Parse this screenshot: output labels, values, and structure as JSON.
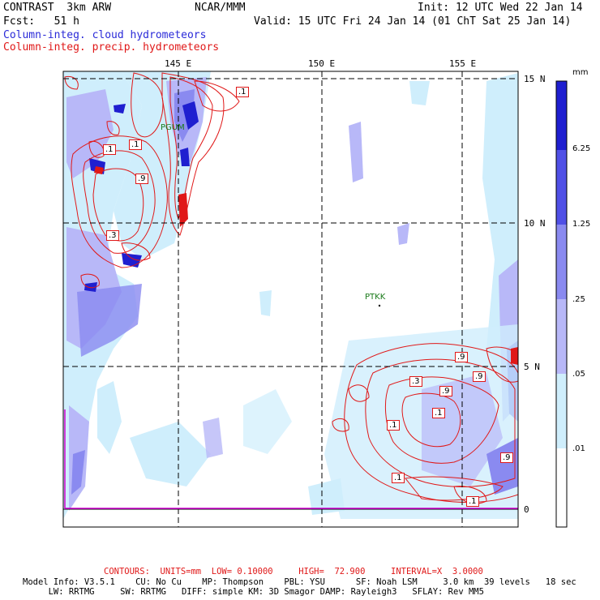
{
  "header": {
    "model": "CONTRAST  3km ARW",
    "org": "NCAR/MMM",
    "init": "Init: 12 UTC Wed 22 Jan 14",
    "fcst": "Fcst:   51 h",
    "valid": "Valid: 15 UTC Fri 24 Jan 14 (01 ChT Sat 25 Jan 14)",
    "field_cloud": "Column-integ. cloud hydrometeors",
    "field_precip": "Column-integ. precip. hydrometeors"
  },
  "axes": {
    "lon_labels": [
      "145 E",
      "150 E",
      "155 E"
    ],
    "lat_labels": [
      "15 N",
      "10 N",
      "5 N",
      "0"
    ]
  },
  "stations": [
    "PGUM",
    "PTKK"
  ],
  "legend": {
    "unit": "mm",
    "labels": [
      "6.25",
      "1.25",
      ".25",
      ".05",
      ".01"
    ],
    "colors": [
      "#1f1fd0",
      "#5050e6",
      "#8a8af0",
      "#b8b8f8",
      "#cfeefc",
      "#ffffff"
    ]
  },
  "contour_labels": [
    ".1",
    ".1",
    ".1",
    ".9",
    ".3",
    ".9",
    ".3",
    ".9",
    ".9",
    ".1",
    ".1",
    ".9",
    ".1",
    ".1"
  ],
  "footer": {
    "contours": "CONTOURS:  UNITS=mm  LOW= 0.10000     HIGH=  72.900     INTERVAL=X  3.0000",
    "line1": "Model Info: V3.5.1    CU: No Cu    MP: Thompson    PBL: YSU      SF: Noah LSM     3.0 km  39 levels   18 sec",
    "line2": "     LW: RRTMG     SW: RRTMG   DIFF: simple KM: 3D Smagor DAMP: Rayleigh3   SFLAY: Rev MM5"
  }
}
